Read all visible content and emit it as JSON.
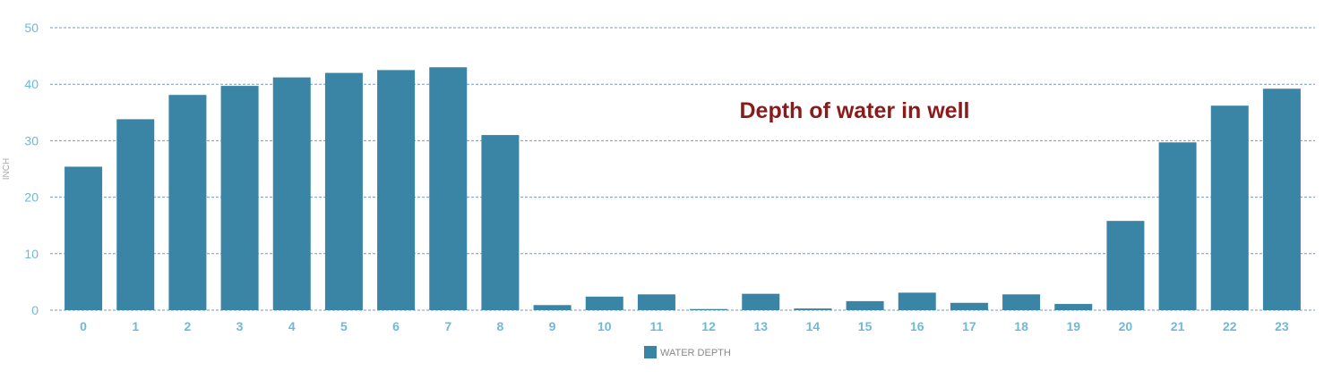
{
  "chart_data": {
    "type": "bar",
    "title": "Depth of water in well",
    "ylabel": "INCH",
    "xlabel": "",
    "ylim": [
      0,
      50
    ],
    "yticks": [
      0,
      10,
      20,
      30,
      40,
      50
    ],
    "grid": true,
    "legend_position": "bottom-center",
    "categories": [
      "0",
      "1",
      "2",
      "3",
      "4",
      "5",
      "6",
      "7",
      "8",
      "9",
      "10",
      "11",
      "12",
      "13",
      "14",
      "15",
      "16",
      "17",
      "18",
      "19",
      "20",
      "21",
      "22",
      "23"
    ],
    "series": [
      {
        "name": "WATER DEPTH",
        "color": "#3a84a6",
        "values": [
          25.4,
          33.8,
          38.1,
          39.7,
          41.2,
          42.0,
          42.5,
          43.0,
          31.0,
          0.9,
          2.4,
          2.8,
          0.2,
          2.9,
          0.3,
          1.6,
          3.1,
          1.3,
          2.8,
          1.1,
          15.8,
          29.7,
          36.2,
          39.2
        ]
      }
    ]
  }
}
